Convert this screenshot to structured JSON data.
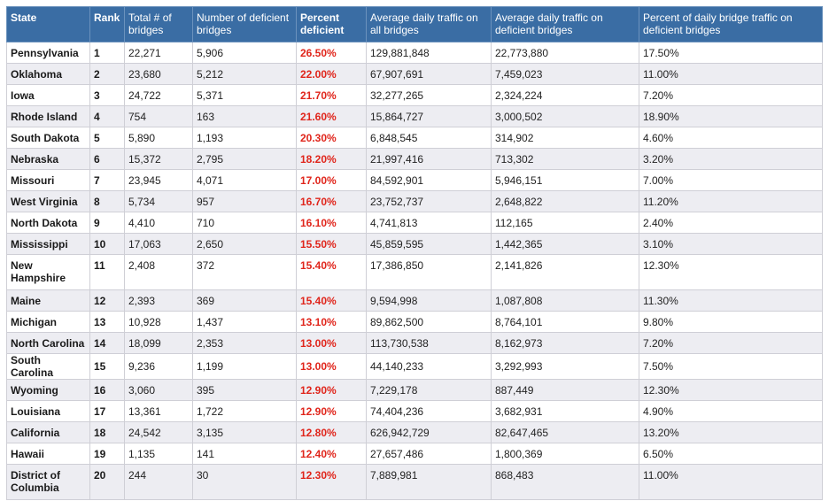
{
  "headers": {
    "state": "State",
    "rank": "Rank",
    "total": "Total # of bridges",
    "deficient": "Number of deficient bridges",
    "percent": "Percent deficient",
    "avg_all": "Average daily traffic on all bridges",
    "avg_def": "Average daily traffic on deficient bridges",
    "pct_traffic": "Percent of daily bridge traffic on deficient bridges"
  },
  "rows": [
    {
      "state": "Pennsylvania",
      "rank": "1",
      "total": "22,271",
      "deficient": "5,906",
      "percent": "26.50%",
      "avg_all": "129,881,848",
      "avg_def": "22,773,880",
      "pct_traffic": "17.50%"
    },
    {
      "state": "Oklahoma",
      "rank": "2",
      "total": "23,680",
      "deficient": "5,212",
      "percent": "22.00%",
      "avg_all": "67,907,691",
      "avg_def": "7,459,023",
      "pct_traffic": "11.00%"
    },
    {
      "state": "Iowa",
      "rank": "3",
      "total": "24,722",
      "deficient": "5,371",
      "percent": "21.70%",
      "avg_all": "32,277,265",
      "avg_def": "2,324,224",
      "pct_traffic": "7.20%"
    },
    {
      "state": "Rhode Island",
      "rank": "4",
      "total": "754",
      "deficient": "163",
      "percent": "21.60%",
      "avg_all": "15,864,727",
      "avg_def": "3,000,502",
      "pct_traffic": "18.90%"
    },
    {
      "state": "South Dakota",
      "rank": "5",
      "total": "5,890",
      "deficient": "1,193",
      "percent": "20.30%",
      "avg_all": "6,848,545",
      "avg_def": "314,902",
      "pct_traffic": "4.60%"
    },
    {
      "state": "Nebraska",
      "rank": "6",
      "total": "15,372",
      "deficient": "2,795",
      "percent": "18.20%",
      "avg_all": "21,997,416",
      "avg_def": "713,302",
      "pct_traffic": "3.20%"
    },
    {
      "state": "Missouri",
      "rank": "7",
      "total": "23,945",
      "deficient": "4,071",
      "percent": "17.00%",
      "avg_all": "84,592,901",
      "avg_def": "5,946,151",
      "pct_traffic": "7.00%"
    },
    {
      "state": "West Virginia",
      "rank": "8",
      "total": "5,734",
      "deficient": "957",
      "percent": "16.70%",
      "avg_all": "23,752,737",
      "avg_def": "2,648,822",
      "pct_traffic": "11.20%"
    },
    {
      "state": "North Dakota",
      "rank": "9",
      "total": "4,410",
      "deficient": "710",
      "percent": "16.10%",
      "avg_all": "4,741,813",
      "avg_def": "112,165",
      "pct_traffic": "2.40%"
    },
    {
      "state": "Mississippi",
      "rank": "10",
      "total": "17,063",
      "deficient": "2,650",
      "percent": "15.50%",
      "avg_all": "45,859,595",
      "avg_def": "1,442,365",
      "pct_traffic": "3.10%"
    },
    {
      "state": "New Hampshire",
      "rank": "11",
      "total": "2,408",
      "deficient": "372",
      "percent": "15.40%",
      "avg_all": "17,386,850",
      "avg_def": "2,141,826",
      "pct_traffic": "12.30%"
    },
    {
      "state": "Maine",
      "rank": "12",
      "total": "2,393",
      "deficient": "369",
      "percent": "15.40%",
      "avg_all": "9,594,998",
      "avg_def": "1,087,808",
      "pct_traffic": "11.30%"
    },
    {
      "state": "Michigan",
      "rank": "13",
      "total": "10,928",
      "deficient": "1,437",
      "percent": "13.10%",
      "avg_all": "89,862,500",
      "avg_def": "8,764,101",
      "pct_traffic": "9.80%"
    },
    {
      "state": "North Carolina",
      "rank": "14",
      "total": "18,099",
      "deficient": "2,353",
      "percent": "13.00%",
      "avg_all": "113,730,538",
      "avg_def": "8,162,973",
      "pct_traffic": "7.20%"
    },
    {
      "state": "South Carolina",
      "rank": "15",
      "total": "9,236",
      "deficient": "1,199",
      "percent": "13.00%",
      "avg_all": "44,140,233",
      "avg_def": "3,292,993",
      "pct_traffic": "7.50%"
    },
    {
      "state": "Wyoming",
      "rank": "16",
      "total": "3,060",
      "deficient": "395",
      "percent": "12.90%",
      "avg_all": "7,229,178",
      "avg_def": "887,449",
      "pct_traffic": "12.30%"
    },
    {
      "state": "Louisiana",
      "rank": "17",
      "total": "13,361",
      "deficient": "1,722",
      "percent": "12.90%",
      "avg_all": "74,404,236",
      "avg_def": "3,682,931",
      "pct_traffic": "4.90%"
    },
    {
      "state": "California",
      "rank": "18",
      "total": "24,542",
      "deficient": "3,135",
      "percent": "12.80%",
      "avg_all": "626,942,729",
      "avg_def": "82,647,465",
      "pct_traffic": "13.20%"
    },
    {
      "state": "Hawaii",
      "rank": "19",
      "total": "1,135",
      "deficient": "141",
      "percent": "12.40%",
      "avg_all": "27,657,486",
      "avg_def": "1,800,369",
      "pct_traffic": "6.50%"
    },
    {
      "state": "District of Columbia",
      "rank": "20",
      "total": "244",
      "deficient": "30",
      "percent": "12.30%",
      "avg_all": "7,889,981",
      "avg_def": "868,483",
      "pct_traffic": "11.00%"
    }
  ]
}
